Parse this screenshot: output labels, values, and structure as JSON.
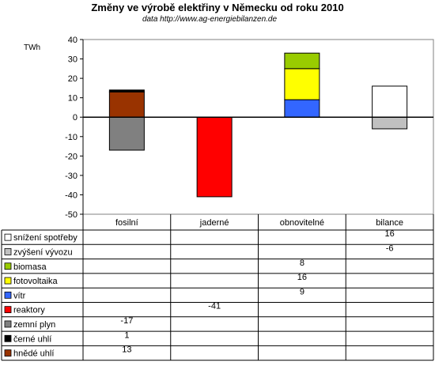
{
  "chart_data": {
    "type": "bar",
    "stacked": true,
    "title": "Změny ve výrobě elektřiny v Německu od roku 2010",
    "subtitle": "data http://www.ag-energiebilanzen.de",
    "ylabel": "TWh",
    "ylim": [
      -50,
      40
    ],
    "yticks": [
      -50,
      -40,
      -30,
      -20,
      -10,
      0,
      10,
      20,
      30,
      40
    ],
    "categories": [
      "fosilní",
      "jaderné",
      "obnovitelné",
      "bilance"
    ],
    "series": [
      {
        "name": "snížení spotřeby",
        "color": "#ffffff",
        "values": [
          null,
          null,
          null,
          16
        ]
      },
      {
        "name": "zvýšení vývozu",
        "color": "#c0c0c0",
        "values": [
          null,
          null,
          null,
          -6
        ]
      },
      {
        "name": "biomasa",
        "color": "#99cc00",
        "values": [
          null,
          null,
          8,
          null
        ]
      },
      {
        "name": "fotovoltaika",
        "color": "#ffff00",
        "values": [
          null,
          null,
          16,
          null
        ]
      },
      {
        "name": "vítr",
        "color": "#3366ff",
        "values": [
          null,
          null,
          9,
          null
        ]
      },
      {
        "name": "reaktory",
        "color": "#ff0000",
        "values": [
          null,
          -41,
          null,
          null
        ]
      },
      {
        "name": "zemní plyn",
        "color": "#808080",
        "values": [
          -17,
          null,
          null,
          null
        ]
      },
      {
        "name": "černé uhlí",
        "color": "#000000",
        "values": [
          1,
          null,
          null,
          null
        ]
      },
      {
        "name": "hnědé uhlí",
        "color": "#993300",
        "values": [
          13,
          null,
          null,
          null
        ]
      }
    ]
  }
}
